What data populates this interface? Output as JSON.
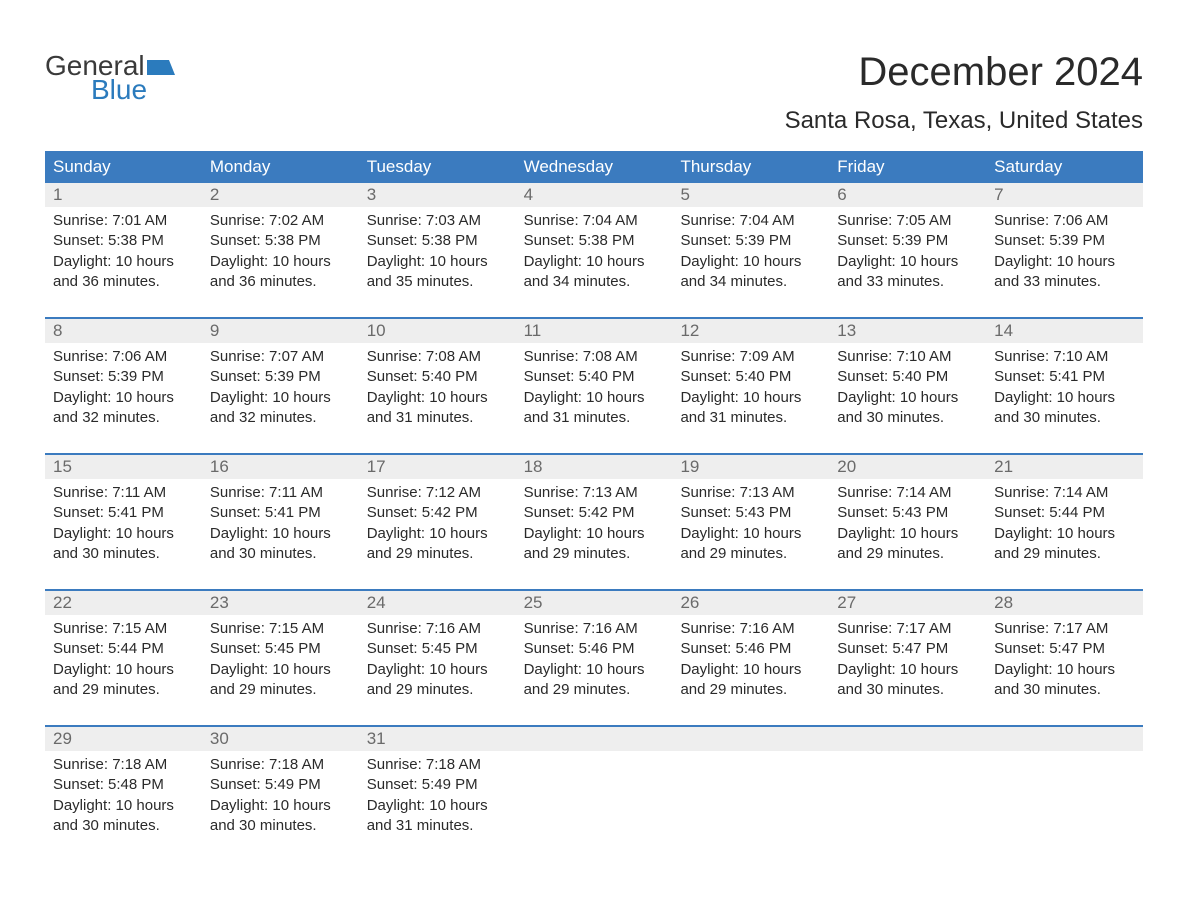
{
  "logo": {
    "text_general": "General",
    "text_blue": "Blue",
    "flag_color": "#2b7bbd"
  },
  "title": "December 2024",
  "location": "Santa Rosa, Texas, United States",
  "colors": {
    "header_bg": "#3b7bbf",
    "header_text": "#ffffff",
    "daynum_bg": "#eeeeee",
    "daynum_text": "#6a6a6a",
    "body_text": "#2a2a2a",
    "week_border": "#3b7bbf",
    "logo_general": "#3a3a3a",
    "logo_blue": "#2b7bbd",
    "background": "#ffffff"
  },
  "typography": {
    "title_fontsize": 40,
    "location_fontsize": 24,
    "dayheader_fontsize": 17,
    "daynum_fontsize": 17,
    "content_fontsize": 15,
    "logo_fontsize": 28
  },
  "day_headers": [
    "Sunday",
    "Monday",
    "Tuesday",
    "Wednesday",
    "Thursday",
    "Friday",
    "Saturday"
  ],
  "weeks": [
    [
      {
        "num": "1",
        "sunrise": "Sunrise: 7:01 AM",
        "sunset": "Sunset: 5:38 PM",
        "daylight1": "Daylight: 10 hours",
        "daylight2": "and 36 minutes."
      },
      {
        "num": "2",
        "sunrise": "Sunrise: 7:02 AM",
        "sunset": "Sunset: 5:38 PM",
        "daylight1": "Daylight: 10 hours",
        "daylight2": "and 36 minutes."
      },
      {
        "num": "3",
        "sunrise": "Sunrise: 7:03 AM",
        "sunset": "Sunset: 5:38 PM",
        "daylight1": "Daylight: 10 hours",
        "daylight2": "and 35 minutes."
      },
      {
        "num": "4",
        "sunrise": "Sunrise: 7:04 AM",
        "sunset": "Sunset: 5:38 PM",
        "daylight1": "Daylight: 10 hours",
        "daylight2": "and 34 minutes."
      },
      {
        "num": "5",
        "sunrise": "Sunrise: 7:04 AM",
        "sunset": "Sunset: 5:39 PM",
        "daylight1": "Daylight: 10 hours",
        "daylight2": "and 34 minutes."
      },
      {
        "num": "6",
        "sunrise": "Sunrise: 7:05 AM",
        "sunset": "Sunset: 5:39 PM",
        "daylight1": "Daylight: 10 hours",
        "daylight2": "and 33 minutes."
      },
      {
        "num": "7",
        "sunrise": "Sunrise: 7:06 AM",
        "sunset": "Sunset: 5:39 PM",
        "daylight1": "Daylight: 10 hours",
        "daylight2": "and 33 minutes."
      }
    ],
    [
      {
        "num": "8",
        "sunrise": "Sunrise: 7:06 AM",
        "sunset": "Sunset: 5:39 PM",
        "daylight1": "Daylight: 10 hours",
        "daylight2": "and 32 minutes."
      },
      {
        "num": "9",
        "sunrise": "Sunrise: 7:07 AM",
        "sunset": "Sunset: 5:39 PM",
        "daylight1": "Daylight: 10 hours",
        "daylight2": "and 32 minutes."
      },
      {
        "num": "10",
        "sunrise": "Sunrise: 7:08 AM",
        "sunset": "Sunset: 5:40 PM",
        "daylight1": "Daylight: 10 hours",
        "daylight2": "and 31 minutes."
      },
      {
        "num": "11",
        "sunrise": "Sunrise: 7:08 AM",
        "sunset": "Sunset: 5:40 PM",
        "daylight1": "Daylight: 10 hours",
        "daylight2": "and 31 minutes."
      },
      {
        "num": "12",
        "sunrise": "Sunrise: 7:09 AM",
        "sunset": "Sunset: 5:40 PM",
        "daylight1": "Daylight: 10 hours",
        "daylight2": "and 31 minutes."
      },
      {
        "num": "13",
        "sunrise": "Sunrise: 7:10 AM",
        "sunset": "Sunset: 5:40 PM",
        "daylight1": "Daylight: 10 hours",
        "daylight2": "and 30 minutes."
      },
      {
        "num": "14",
        "sunrise": "Sunrise: 7:10 AM",
        "sunset": "Sunset: 5:41 PM",
        "daylight1": "Daylight: 10 hours",
        "daylight2": "and 30 minutes."
      }
    ],
    [
      {
        "num": "15",
        "sunrise": "Sunrise: 7:11 AM",
        "sunset": "Sunset: 5:41 PM",
        "daylight1": "Daylight: 10 hours",
        "daylight2": "and 30 minutes."
      },
      {
        "num": "16",
        "sunrise": "Sunrise: 7:11 AM",
        "sunset": "Sunset: 5:41 PM",
        "daylight1": "Daylight: 10 hours",
        "daylight2": "and 30 minutes."
      },
      {
        "num": "17",
        "sunrise": "Sunrise: 7:12 AM",
        "sunset": "Sunset: 5:42 PM",
        "daylight1": "Daylight: 10 hours",
        "daylight2": "and 29 minutes."
      },
      {
        "num": "18",
        "sunrise": "Sunrise: 7:13 AM",
        "sunset": "Sunset: 5:42 PM",
        "daylight1": "Daylight: 10 hours",
        "daylight2": "and 29 minutes."
      },
      {
        "num": "19",
        "sunrise": "Sunrise: 7:13 AM",
        "sunset": "Sunset: 5:43 PM",
        "daylight1": "Daylight: 10 hours",
        "daylight2": "and 29 minutes."
      },
      {
        "num": "20",
        "sunrise": "Sunrise: 7:14 AM",
        "sunset": "Sunset: 5:43 PM",
        "daylight1": "Daylight: 10 hours",
        "daylight2": "and 29 minutes."
      },
      {
        "num": "21",
        "sunrise": "Sunrise: 7:14 AM",
        "sunset": "Sunset: 5:44 PM",
        "daylight1": "Daylight: 10 hours",
        "daylight2": "and 29 minutes."
      }
    ],
    [
      {
        "num": "22",
        "sunrise": "Sunrise: 7:15 AM",
        "sunset": "Sunset: 5:44 PM",
        "daylight1": "Daylight: 10 hours",
        "daylight2": "and 29 minutes."
      },
      {
        "num": "23",
        "sunrise": "Sunrise: 7:15 AM",
        "sunset": "Sunset: 5:45 PM",
        "daylight1": "Daylight: 10 hours",
        "daylight2": "and 29 minutes."
      },
      {
        "num": "24",
        "sunrise": "Sunrise: 7:16 AM",
        "sunset": "Sunset: 5:45 PM",
        "daylight1": "Daylight: 10 hours",
        "daylight2": "and 29 minutes."
      },
      {
        "num": "25",
        "sunrise": "Sunrise: 7:16 AM",
        "sunset": "Sunset: 5:46 PM",
        "daylight1": "Daylight: 10 hours",
        "daylight2": "and 29 minutes."
      },
      {
        "num": "26",
        "sunrise": "Sunrise: 7:16 AM",
        "sunset": "Sunset: 5:46 PM",
        "daylight1": "Daylight: 10 hours",
        "daylight2": "and 29 minutes."
      },
      {
        "num": "27",
        "sunrise": "Sunrise: 7:17 AM",
        "sunset": "Sunset: 5:47 PM",
        "daylight1": "Daylight: 10 hours",
        "daylight2": "and 30 minutes."
      },
      {
        "num": "28",
        "sunrise": "Sunrise: 7:17 AM",
        "sunset": "Sunset: 5:47 PM",
        "daylight1": "Daylight: 10 hours",
        "daylight2": "and 30 minutes."
      }
    ],
    [
      {
        "num": "29",
        "sunrise": "Sunrise: 7:18 AM",
        "sunset": "Sunset: 5:48 PM",
        "daylight1": "Daylight: 10 hours",
        "daylight2": "and 30 minutes."
      },
      {
        "num": "30",
        "sunrise": "Sunrise: 7:18 AM",
        "sunset": "Sunset: 5:49 PM",
        "daylight1": "Daylight: 10 hours",
        "daylight2": "and 30 minutes."
      },
      {
        "num": "31",
        "sunrise": "Sunrise: 7:18 AM",
        "sunset": "Sunset: 5:49 PM",
        "daylight1": "Daylight: 10 hours",
        "daylight2": "and 31 minutes."
      },
      {
        "empty": true
      },
      {
        "empty": true
      },
      {
        "empty": true
      },
      {
        "empty": true
      }
    ]
  ]
}
